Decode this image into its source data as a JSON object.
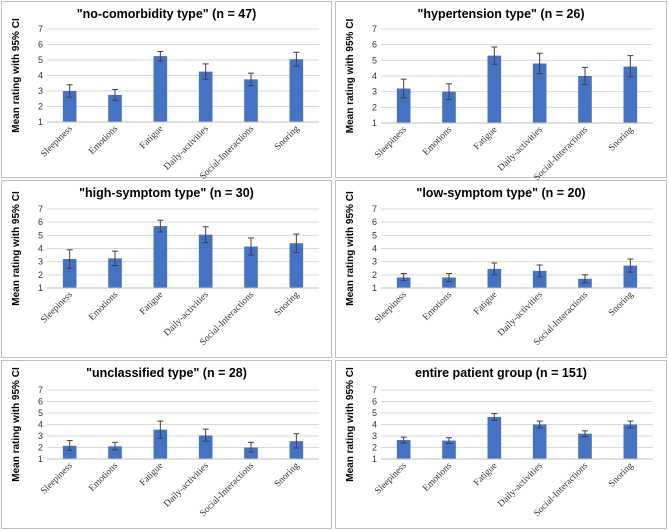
{
  "colors": {
    "bar": "#4472C4",
    "grid": "#d9d9d9",
    "frame": "#bfbfbf",
    "error": "#404040"
  },
  "chart_data": [
    {
      "type": "bar",
      "title": "\"no-comorbidity type\" (n = 47)",
      "ylabel": "Mean rating with 95% CI",
      "categories": [
        "Sleepiness",
        "Emotions",
        "Fatigue",
        "Daily-activities",
        "Social-Interactions",
        "Snoring"
      ],
      "values": [
        3.0,
        2.75,
        5.25,
        4.25,
        3.75,
        5.05
      ],
      "ci_lower": [
        2.6,
        2.4,
        4.95,
        3.75,
        3.35,
        4.6
      ],
      "ci_upper": [
        3.4,
        3.1,
        5.55,
        4.75,
        4.15,
        5.5
      ],
      "yticks": [
        1,
        2,
        3,
        4,
        5,
        6,
        7
      ],
      "ylim": [
        1,
        7
      ]
    },
    {
      "type": "bar",
      "title": "\"hypertension type\" (n = 26)",
      "ylabel": "Mean rating with 95% CI",
      "categories": [
        "Sleepiness",
        "Emotions",
        "Fatigue",
        "Daily-activities",
        "Social-Interactions",
        "Snoring"
      ],
      "values": [
        3.2,
        3.0,
        5.3,
        4.8,
        4.0,
        4.6
      ],
      "ci_lower": [
        2.6,
        2.5,
        4.75,
        4.15,
        3.45,
        3.95
      ],
      "ci_upper": [
        3.8,
        3.5,
        5.85,
        5.45,
        4.55,
        5.3
      ],
      "yticks": [
        1,
        2,
        3,
        4,
        5,
        6,
        7
      ],
      "ylim": [
        1,
        7
      ]
    },
    {
      "type": "bar",
      "title": "\"high-symptom type\" (n = 30)",
      "ylabel": "Mean rating with 95% CI",
      "categories": [
        "Sleepiness",
        "Emotions",
        "Fatigue",
        "Daily-activities",
        "Social-Interactions",
        "Snoring"
      ],
      "values": [
        3.2,
        3.25,
        5.7,
        5.05,
        4.15,
        4.4
      ],
      "ci_lower": [
        2.5,
        2.7,
        5.25,
        4.45,
        3.5,
        3.7
      ],
      "ci_upper": [
        3.9,
        3.8,
        6.15,
        5.65,
        4.8,
        5.1
      ],
      "yticks": [
        1,
        2,
        3,
        4,
        5,
        6,
        7
      ],
      "ylim": [
        1,
        7
      ]
    },
    {
      "type": "bar",
      "title": "\"low-symptom type\" (n = 20)",
      "ylabel": "Mean rating with 95% CI",
      "categories": [
        "Sleepiness",
        "Emotions",
        "Fatigue",
        "Daily-activities",
        "Social-Interactions",
        "Snoring"
      ],
      "values": [
        1.8,
        1.8,
        2.45,
        2.3,
        1.7,
        2.7
      ],
      "ci_lower": [
        1.55,
        1.5,
        2.0,
        1.85,
        1.4,
        2.2
      ],
      "ci_upper": [
        2.1,
        2.1,
        2.9,
        2.75,
        2.0,
        3.2
      ],
      "yticks": [
        1,
        2,
        3,
        4,
        5,
        6,
        7
      ],
      "ylim": [
        1,
        7
      ]
    },
    {
      "type": "bar",
      "title": "\"unclassified type\" (n = 28)",
      "ylabel": "Mean rating with 95% CI",
      "categories": [
        "Sleepiness",
        "Emotions",
        "Fatigue",
        "Daily-activities",
        "Social-Interactions",
        "Snoring"
      ],
      "values": [
        2.15,
        2.1,
        3.55,
        3.05,
        2.0,
        2.55
      ],
      "ci_lower": [
        1.75,
        1.8,
        2.8,
        2.55,
        1.6,
        1.95
      ],
      "ci_upper": [
        2.6,
        2.45,
        4.3,
        3.6,
        2.45,
        3.2
      ],
      "yticks": [
        1,
        2,
        3,
        4,
        5,
        6,
        7
      ],
      "ylim": [
        1,
        7
      ]
    },
    {
      "type": "bar",
      "title": "entire patient group (n = 151)",
      "ylabel": "Mean rating with 95% CI",
      "categories": [
        "Sleepiness",
        "Emotions",
        "Fatigue",
        "Daily-activities",
        "Social-Interactions",
        "Snoring"
      ],
      "values": [
        2.65,
        2.6,
        4.65,
        4.0,
        3.2,
        4.0
      ],
      "ci_lower": [
        2.4,
        2.35,
        4.35,
        3.7,
        2.95,
        3.7
      ],
      "ci_upper": [
        2.9,
        2.85,
        4.95,
        4.3,
        3.45,
        4.3
      ],
      "yticks": [
        1,
        2,
        3,
        4,
        5,
        6,
        7
      ],
      "ylim": [
        1,
        7
      ]
    }
  ]
}
